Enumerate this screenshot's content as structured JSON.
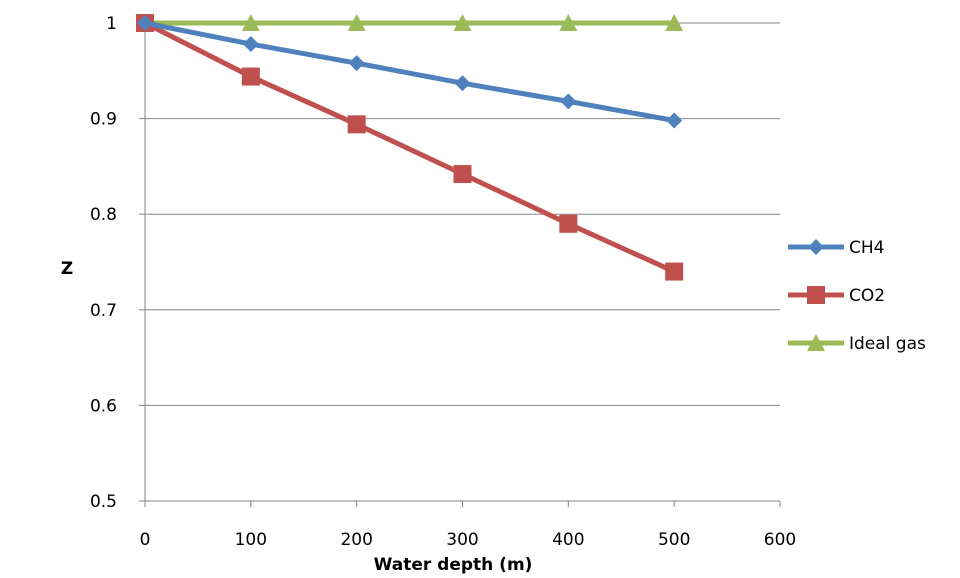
{
  "chart_data": {
    "type": "line",
    "title": "",
    "xlabel": "Water depth (m)",
    "ylabel": "Z",
    "xlim": [
      0,
      600
    ],
    "ylim": [
      0.5,
      1
    ],
    "x_ticks": [
      0,
      100,
      200,
      300,
      400,
      500,
      600
    ],
    "y_ticks": [
      0.5,
      0.6,
      0.7,
      0.8,
      0.9,
      1
    ],
    "y_tick_labels": [
      "0.5",
      "0.6",
      "0.7",
      "0.8",
      "0.9",
      "1"
    ],
    "grid": "horizontal",
    "legend_position": "right",
    "series": [
      {
        "name": "CH4",
        "color": "#4F81BD",
        "marker": "diamond",
        "x": [
          0,
          100,
          200,
          300,
          400,
          500
        ],
        "values": [
          1.0,
          0.978,
          0.958,
          0.937,
          0.918,
          0.898
        ]
      },
      {
        "name": "CO2",
        "color": "#C0504D",
        "marker": "square",
        "x": [
          0,
          100,
          200,
          300,
          400,
          500
        ],
        "values": [
          1.0,
          0.944,
          0.894,
          0.842,
          0.79,
          0.74
        ]
      },
      {
        "name": "Ideal gas",
        "color": "#9BBB59",
        "marker": "triangle",
        "x": [
          0,
          100,
          200,
          300,
          400,
          500
        ],
        "values": [
          1.0,
          1.0,
          1.0,
          1.0,
          1.0,
          1.0
        ]
      }
    ]
  }
}
